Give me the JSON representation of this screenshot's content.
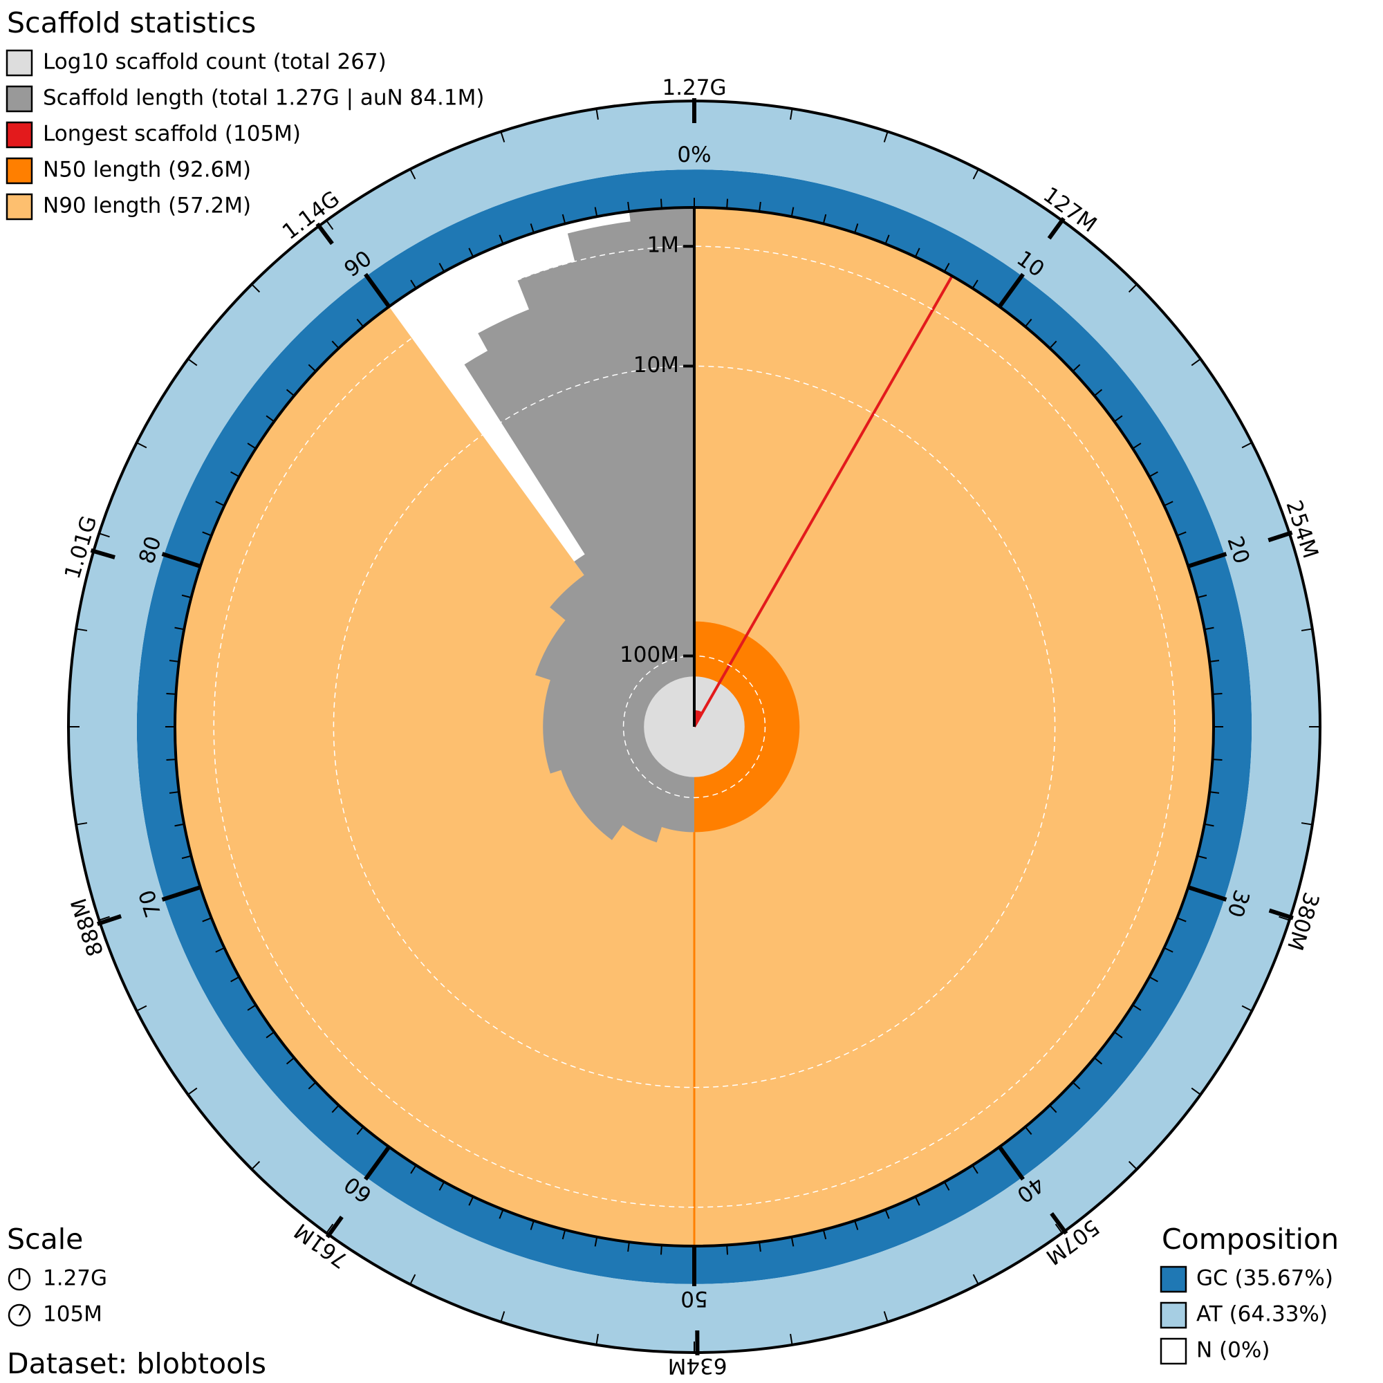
{
  "chart_data": {
    "type": "snail",
    "title": "Scaffold statistics",
    "legend": [
      {
        "label": "Log10 scaffold count (total 267)",
        "color": "#dddddd"
      },
      {
        "label": "Scaffold length (total 1.27G | auN 84.1M)",
        "color": "#999999"
      },
      {
        "label": "Longest scaffold (105M)",
        "color": "#e31a1c"
      },
      {
        "label": "N50 length (92.6M)",
        "color": "#ff7f00"
      },
      {
        "label": "N90 length (57.2M)",
        "color": "#fdbf6f"
      }
    ],
    "total": 1270000000,
    "count": 267,
    "longest": 105000000,
    "n50": {
      "percent": 50,
      "length": 92600000
    },
    "n90": {
      "percent": 90,
      "length": 57200000
    },
    "length_curve": {
      "percent": [
        50,
        55,
        60,
        70,
        80,
        86,
        90,
        91,
        92,
        94,
        96,
        98,
        100
      ],
      "length": [
        92600000,
        88000000,
        82000000,
        78000000,
        72000000,
        64000000,
        57200000,
        3000000,
        2000000,
        1000000,
        500000,
        200000,
        100000
      ]
    },
    "radial_ticks": [
      {
        "value": 1000000,
        "label": "1M"
      },
      {
        "value": 10000000,
        "label": "10M"
      },
      {
        "value": 100000000,
        "label": "100M"
      }
    ],
    "span_ticks": [
      {
        "value": 127000000,
        "label": "127M"
      },
      {
        "value": 254000000,
        "label": "254M"
      },
      {
        "value": 380000000,
        "label": "380M"
      },
      {
        "value": 507000000,
        "label": "507M"
      },
      {
        "value": 634000000,
        "label": "634M"
      },
      {
        "value": 761000000,
        "label": "761M"
      },
      {
        "value": 888000000,
        "label": "888M"
      },
      {
        "value": 1010000000,
        "label": "1.01G"
      },
      {
        "value": 1140000000,
        "label": "1.14G"
      },
      {
        "value": 1270000000,
        "label": "1.27G"
      }
    ],
    "percent_ticks": [
      10,
      20,
      30,
      40,
      50,
      60,
      70,
      80,
      90
    ],
    "gc_axis_label": "0%",
    "scale": {
      "title": "Scale",
      "items": [
        "1.27G",
        "105M"
      ]
    },
    "dataset": "Dataset: blobtools",
    "composition": {
      "title": "Composition",
      "items": [
        {
          "label": "GC (35.67%)",
          "value": 35.67,
          "color": "#1f78b4"
        },
        {
          "label": "AT (64.33%)",
          "value": 64.33,
          "color": "#a6cee3"
        },
        {
          "label": "N (0%)",
          "value": 0,
          "color": "#ffffff"
        }
      ]
    }
  }
}
